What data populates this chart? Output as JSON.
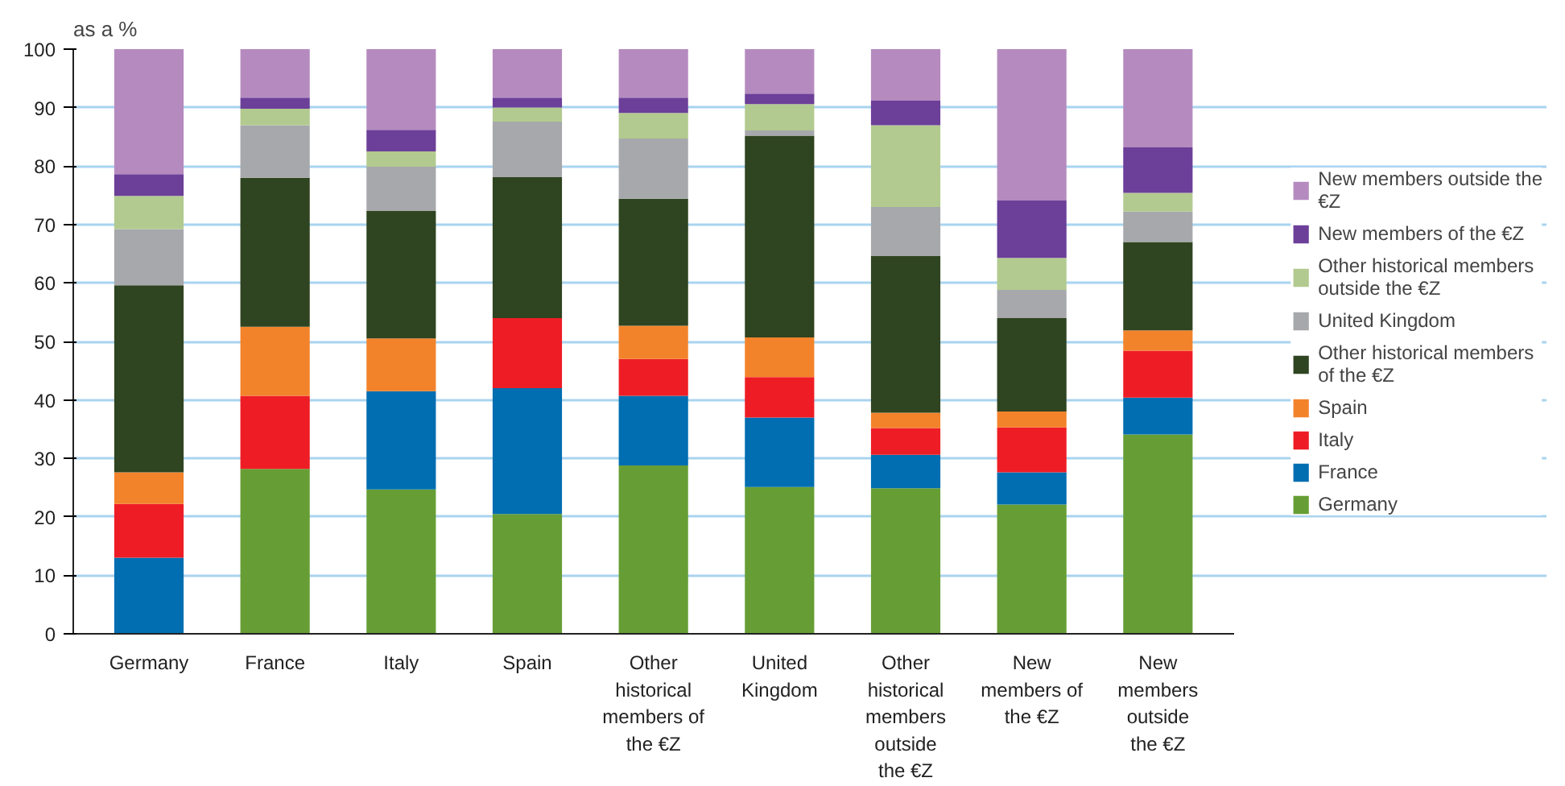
{
  "chart_data": {
    "type": "bar",
    "stacked": true,
    "ylabel": "as a %",
    "categories": [
      "Germany",
      "France",
      "Italy",
      "Spain",
      "Other historical members of the €Z",
      "United Kingdom",
      "Other historical members outside the €Z",
      "New members of the €Z",
      "New members outside the €Z"
    ],
    "ylim": [
      0,
      100
    ],
    "yticks": [
      0,
      10,
      20,
      30,
      40,
      50,
      60,
      70,
      80,
      90,
      100
    ],
    "grid": "y",
    "legend": "right",
    "series": [
      {
        "name": "Germany",
        "color": "#669e35",
        "values": [
          0,
          28.2,
          24.7,
          20.5,
          28.8,
          25.1,
          24.9,
          22.1,
          34.1
        ]
      },
      {
        "name": "France",
        "color": "#006eb0",
        "values": [
          13,
          0,
          16.8,
          21.5,
          11.9,
          11.9,
          5.7,
          5.5,
          6.3
        ]
      },
      {
        "name": "Italy",
        "color": "#ee1d25",
        "values": [
          9.2,
          12.5,
          0,
          12,
          6.3,
          6.9,
          4.6,
          7.7,
          8
        ]
      },
      {
        "name": "Spain",
        "color": "#f3832b",
        "values": [
          5.4,
          11.8,
          9,
          0,
          5.7,
          6.8,
          2.6,
          2.7,
          3.5
        ]
      },
      {
        "name": "Other historical members of the €Z",
        "color": "#2f4420",
        "values": [
          32,
          25.5,
          21.8,
          24.1,
          21.7,
          34.5,
          26.8,
          16,
          15.1
        ]
      },
      {
        "name": "United Kingdom",
        "color": "#a7a8ab",
        "values": [
          9.6,
          9,
          7.6,
          9.5,
          10.3,
          0.9,
          8.4,
          4.8,
          5.2
        ]
      },
      {
        "name": "Other historical members outside the €Z",
        "color": "#b2ca8f",
        "values": [
          5.7,
          2.8,
          2.6,
          2.4,
          4.4,
          4.5,
          14,
          5.5,
          3.2
        ]
      },
      {
        "name": "New members of the €Z",
        "color": "#6c3f99",
        "values": [
          3.7,
          1.9,
          3.7,
          1.7,
          2.6,
          1.8,
          4.2,
          9.8,
          7.8
        ]
      },
      {
        "name": "New members outside the €Z",
        "color": "#b58bbf",
        "values": [
          21.4,
          8.3,
          13.8,
          8.3,
          8.3,
          7.6,
          8.8,
          25.9,
          16.8
        ]
      }
    ]
  }
}
